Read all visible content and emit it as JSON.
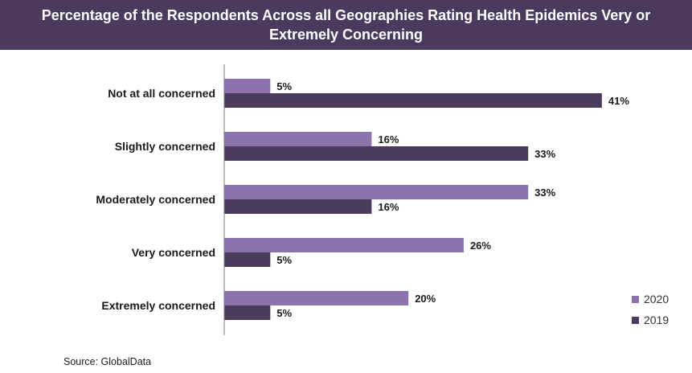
{
  "title": "Percentage of the Respondents Across all Geographies Rating Health Epidemics Very or Extremely Concerning",
  "source": "Source: GlobalData",
  "colors": {
    "header_bg": "#4b3a5e",
    "series_2020": "#8c73ad",
    "series_2019": "#4a3a5c"
  },
  "chart_data": {
    "type": "bar",
    "orientation": "horizontal",
    "categories": [
      "Not at all concerned",
      "Slightly concerned",
      "Moderately concerned",
      "Very concerned",
      "Extremely concerned"
    ],
    "series": [
      {
        "name": "2020",
        "values": [
          5,
          16,
          33,
          26,
          20
        ],
        "labels": [
          "5%",
          "16%",
          "33%",
          "26%",
          "20%"
        ]
      },
      {
        "name": "2019",
        "values": [
          41,
          33,
          16,
          5,
          5
        ],
        "labels": [
          "41%",
          "33%",
          "16%",
          "5%",
          "5%"
        ]
      }
    ],
    "value_unit": "%",
    "grid": false,
    "legend_position": "bottom-right"
  }
}
